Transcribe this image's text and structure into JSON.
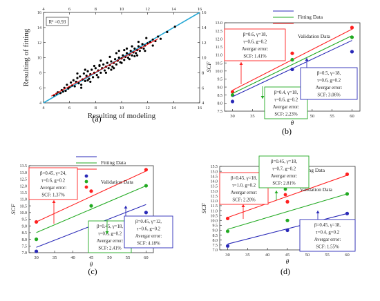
{
  "chart_data": [
    {
      "type": "scatter",
      "panel_label": "(a)",
      "xlabel": "Resulting of modeling",
      "ylabel": "Resulting of fitting",
      "xlim": [
        4,
        16
      ],
      "ylim": [
        4,
        16
      ],
      "xticks": [
        4,
        6,
        8,
        10,
        12,
        14,
        16
      ],
      "yticks": [
        4,
        6,
        8,
        10,
        12,
        14,
        16
      ],
      "r2_label": "R² =0.93",
      "diagonal_color": "#29a9d6",
      "fit_color": "#ff0000",
      "point_color": "#000000",
      "fit_line": [
        [
          4.6,
          4.9
        ],
        [
          12.8,
          12.5
        ]
      ],
      "points": [
        [
          4.8,
          5.0
        ],
        [
          5.0,
          5.2
        ],
        [
          5.1,
          5.4
        ],
        [
          5.3,
          5.3
        ],
        [
          5.4,
          5.7
        ],
        [
          5.5,
          5.5
        ],
        [
          5.6,
          6.0
        ],
        [
          5.7,
          5.6
        ],
        [
          5.8,
          6.4
        ],
        [
          5.9,
          5.9
        ],
        [
          6.0,
          6.1
        ],
        [
          6.1,
          6.7
        ],
        [
          6.2,
          6.3
        ],
        [
          6.3,
          7.0
        ],
        [
          6.4,
          6.2
        ],
        [
          6.5,
          6.8
        ],
        [
          6.6,
          7.3
        ],
        [
          6.7,
          6.6
        ],
        [
          6.8,
          7.5
        ],
        [
          6.9,
          6.4
        ],
        [
          7.0,
          7.1
        ],
        [
          7.1,
          7.9
        ],
        [
          7.2,
          6.9
        ],
        [
          7.3,
          7.6
        ],
        [
          7.4,
          8.2
        ],
        [
          7.5,
          7.2
        ],
        [
          7.6,
          7.8
        ],
        [
          7.7,
          8.4
        ],
        [
          7.8,
          7.4
        ],
        [
          7.9,
          8.0
        ],
        [
          8.0,
          8.6
        ],
        [
          8.1,
          7.7
        ],
        [
          8.2,
          8.3
        ],
        [
          8.3,
          8.9
        ],
        [
          8.4,
          8.0
        ],
        [
          8.5,
          8.6
        ],
        [
          8.6,
          9.1
        ],
        [
          8.7,
          8.3
        ],
        [
          8.8,
          8.8
        ],
        [
          8.9,
          9.3
        ],
        [
          9.0,
          8.6
        ],
        [
          9.1,
          9.0
        ],
        [
          9.2,
          9.5
        ],
        [
          9.3,
          8.8
        ],
        [
          9.4,
          9.3
        ],
        [
          9.5,
          9.8
        ],
        [
          9.6,
          9.1
        ],
        [
          9.7,
          9.6
        ],
        [
          9.8,
          10.0
        ],
        [
          9.9,
          9.4
        ],
        [
          10.0,
          9.9
        ],
        [
          10.1,
          10.3
        ],
        [
          10.2,
          9.7
        ],
        [
          10.3,
          10.1
        ],
        [
          10.4,
          10.6
        ],
        [
          10.5,
          10.0
        ],
        [
          10.6,
          10.4
        ],
        [
          10.7,
          10.9
        ],
        [
          10.8,
          10.3
        ],
        [
          10.9,
          10.7
        ],
        [
          11.0,
          11.2
        ],
        [
          11.1,
          10.6
        ],
        [
          11.2,
          11.0
        ],
        [
          11.3,
          11.5
        ],
        [
          11.4,
          10.9
        ],
        [
          11.5,
          11.3
        ],
        [
          11.6,
          11.8
        ],
        [
          11.7,
          11.2
        ],
        [
          11.8,
          11.6
        ],
        [
          12.0,
          11.9
        ],
        [
          12.2,
          12.1
        ],
        [
          12.4,
          12.4
        ],
        [
          12.6,
          12.2
        ],
        [
          12.8,
          12.8
        ],
        [
          13.0,
          12.5
        ],
        [
          13.5,
          13.4
        ],
        [
          14.1,
          14.1
        ],
        [
          6.6,
          7.9
        ],
        [
          7.2,
          8.4
        ],
        [
          7.9,
          8.9
        ],
        [
          8.4,
          9.6
        ],
        [
          9.1,
          10.1
        ],
        [
          9.6,
          10.6
        ],
        [
          10.2,
          11.0
        ],
        [
          10.8,
          11.5
        ],
        [
          11.3,
          12.1
        ],
        [
          11.9,
          12.6
        ],
        [
          6.9,
          6.0
        ],
        [
          7.6,
          6.8
        ],
        [
          8.2,
          7.4
        ],
        [
          8.8,
          8.0
        ],
        [
          9.4,
          8.6
        ],
        [
          10.0,
          9.3
        ],
        [
          10.6,
          9.8
        ],
        [
          11.2,
          10.3
        ],
        [
          11.8,
          10.9
        ],
        [
          12.4,
          11.6
        ],
        [
          8.3,
          9.0
        ],
        [
          9.2,
          8.4
        ],
        [
          10.4,
          11.2
        ],
        [
          7.4,
          7.0
        ],
        [
          9.8,
          10.9
        ],
        [
          11.0,
          10.2
        ]
      ]
    },
    {
      "type": "line",
      "panel_label": "(b)",
      "xlabel": "θ",
      "ylabel": "SCF",
      "xlim": [
        28,
        62
      ],
      "ylim": [
        7.5,
        13.0
      ],
      "xticks": [
        30,
        35,
        40,
        45,
        50,
        55,
        60
      ],
      "yticks": [
        7.5,
        8.0,
        8.5,
        9.0,
        9.5,
        10.0,
        10.5,
        11.0,
        11.5,
        12.0,
        12.5,
        13.0
      ],
      "legend": [
        {
          "label": "Fitting Data",
          "role": "line"
        },
        {
          "label": "Validation Data",
          "role": "points"
        }
      ],
      "series": [
        {
          "color": "#ff2020",
          "fit": [
            [
              30,
              8.8
            ],
            [
              60,
              12.6
            ]
          ],
          "points": [
            [
              30,
              8.7
            ],
            [
              45,
              11.1
            ],
            [
              60,
              12.7
            ]
          ]
        },
        {
          "color": "#22aa22",
          "fit": [
            [
              30,
              8.6
            ],
            [
              60,
              12.2
            ]
          ],
          "points": [
            [
              30,
              8.5
            ],
            [
              45,
              10.7
            ],
            [
              60,
              12.1
            ]
          ]
        },
        {
          "color": "#2a2ab8",
          "fit": [
            [
              30,
              8.4
            ],
            [
              60,
              11.9
            ]
          ],
          "points": [
            [
              30,
              8.1
            ],
            [
              45,
              10.1
            ],
            [
              60,
              11.2
            ]
          ]
        }
      ],
      "annotations": [
        {
          "color": "#ff2020",
          "lines": [
            "β=0.6, γ=18,",
            "τ=0.6, g=0.2",
            "Avergar error:",
            "SCF: 1.41%"
          ]
        },
        {
          "color": "#22aa22",
          "lines": [
            "β=0.4, γ=18,",
            "τ=0.6, g=0.2",
            "Avergar error:",
            "SCF: 2.23%"
          ]
        },
        {
          "color": "#2a2ab8",
          "lines": [
            "β=0.5, γ=18,",
            "τ=0.6, g=0.2",
            "Avergar error:",
            "SCF: 3.06%"
          ]
        }
      ]
    },
    {
      "type": "line",
      "panel_label": "(c)",
      "xlabel": "θ",
      "ylabel": "SCF",
      "xlim": [
        28,
        62
      ],
      "ylim": [
        7.0,
        13.5
      ],
      "xticks": [
        30,
        35,
        40,
        45,
        50,
        55,
        60
      ],
      "yticks": [
        7.0,
        7.5,
        8.0,
        8.5,
        9.0,
        9.5,
        10.0,
        10.5,
        11.0,
        11.5,
        12.0,
        12.5,
        13.0,
        13.5
      ],
      "legend": [
        {
          "label": "Fitting Data",
          "role": "line"
        },
        {
          "label": "Validation Data",
          "role": "points"
        }
      ],
      "series": [
        {
          "color": "#ff2020",
          "fit": [
            [
              30,
              9.3
            ],
            [
              60,
              13.1
            ]
          ],
          "points": [
            [
              30,
              9.3
            ],
            [
              45,
              11.6
            ],
            [
              60,
              13.2
            ]
          ]
        },
        {
          "color": "#22aa22",
          "fit": [
            [
              30,
              8.5
            ],
            [
              60,
              12.0
            ]
          ],
          "points": [
            [
              30,
              8.0
            ],
            [
              45,
              10.5
            ],
            [
              60,
              12.0
            ]
          ]
        },
        {
          "color": "#2a2ab8",
          "fit": [
            [
              30,
              7.4
            ],
            [
              60,
              10.6
            ]
          ],
          "points": [
            [
              30,
              7.1
            ],
            [
              45,
              9.2
            ],
            [
              60,
              10.0
            ]
          ]
        }
      ],
      "annotations": [
        {
          "color": "#ff2020",
          "lines": [
            "β=0.45, γ=24,",
            "τ=0.6, g=0.2",
            "Avergar error:",
            "SCF: 1.37%"
          ]
        },
        {
          "color": "#22aa22",
          "lines": [
            "β=0.45, γ=18,",
            "τ=0.6, g=0.2",
            "Avergar error:",
            "SCF: 2.41%"
          ]
        },
        {
          "color": "#2a2ab8",
          "lines": [
            "β=0.45, γ=12,",
            "τ=0.6, g=0.2",
            "Avergar error:",
            "SCF: 4.18%"
          ]
        }
      ]
    },
    {
      "type": "line",
      "panel_label": "(d)",
      "xlabel": "θ",
      "ylabel": "SCF",
      "xlim": [
        28,
        62
      ],
      "ylim": [
        7.0,
        15.5
      ],
      "xticks": [
        30,
        35,
        40,
        45,
        50,
        55,
        60
      ],
      "yticks": [
        7.0,
        7.5,
        8.0,
        8.5,
        9.0,
        9.5,
        10.0,
        10.5,
        11.0,
        11.5,
        12.0,
        12.5,
        13.0,
        13.5,
        14.0,
        14.5,
        15.0,
        15.5
      ],
      "legend": [
        {
          "label": "Fitting Data",
          "role": "line"
        },
        {
          "label": "Validation Data",
          "role": "points"
        }
      ],
      "series": [
        {
          "color": "#ff2020",
          "fit": [
            [
              30,
              10.3
            ],
            [
              60,
              14.6
            ]
          ],
          "points": [
            [
              30,
              10.2
            ],
            [
              45,
              11.9
            ],
            [
              60,
              14.7
            ]
          ]
        },
        {
          "color": "#22aa22",
          "fit": [
            [
              30,
              9.1
            ],
            [
              60,
              12.7
            ]
          ],
          "points": [
            [
              30,
              8.9
            ],
            [
              45,
              10.0
            ],
            [
              60,
              12.7
            ]
          ]
        },
        {
          "color": "#2a2ab8",
          "fit": [
            [
              30,
              7.6
            ],
            [
              60,
              10.7
            ]
          ],
          "points": [
            [
              30,
              7.4
            ],
            [
              45,
              9.0
            ],
            [
              60,
              10.7
            ]
          ]
        }
      ],
      "annotations": [
        {
          "color": "#ff2020",
          "lines": [
            "β=0.45, γ=18,",
            "τ=1.0, g=0.2",
            "Avergar error:",
            "SCF: 2.20%"
          ]
        },
        {
          "color": "#22aa22",
          "lines": [
            "β=0.45, γ=18,",
            "τ=0.7, g=0.2",
            "Avergar error:",
            "SCF: 2.81%"
          ]
        },
        {
          "color": "#2a2ab8",
          "lines": [
            "β=0.45, γ=18,",
            "τ=0.4, g=0.2",
            "Avergar error:",
            "SCF: 1.55%"
          ]
        }
      ]
    }
  ]
}
